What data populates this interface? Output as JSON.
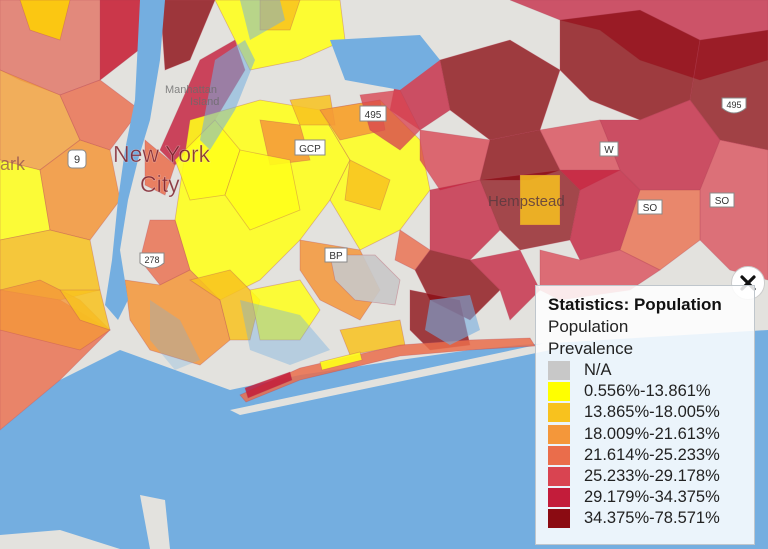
{
  "map": {
    "labels": {
      "city": "New York",
      "city2": "City",
      "manhattan": "Manhattan",
      "island": "Island",
      "hempstead": "Hempstead",
      "ark": "ark"
    },
    "shields": {
      "i9": "9",
      "i278": "278",
      "gcp": "GCP",
      "r495": "495",
      "w": "W",
      "so1": "SO",
      "so2": "SO",
      "bp": "BP",
      "i495": "495"
    }
  },
  "legend": {
    "title": "Statistics: Population",
    "subtitle_line1": "Population",
    "subtitle_line2": "Prevalence",
    "items": [
      {
        "label": "N/A",
        "color": "#c8c8c8"
      },
      {
        "label": "0.556%-13.861%",
        "color": "#ffff00"
      },
      {
        "label": "13.865%-18.005%",
        "color": "#f8c21e"
      },
      {
        "label": "18.009%-21.613%",
        "color": "#f4973a"
      },
      {
        "label": "21.614%-25.233%",
        "color": "#ea6d4b"
      },
      {
        "label": "25.233%-29.178%",
        "color": "#d94451"
      },
      {
        "label": "29.179%-34.375%",
        "color": "#c31c3a"
      },
      {
        "label": "34.375%-78.571%",
        "color": "#8b0b12"
      }
    ]
  },
  "close_icon": "close-x-icon"
}
